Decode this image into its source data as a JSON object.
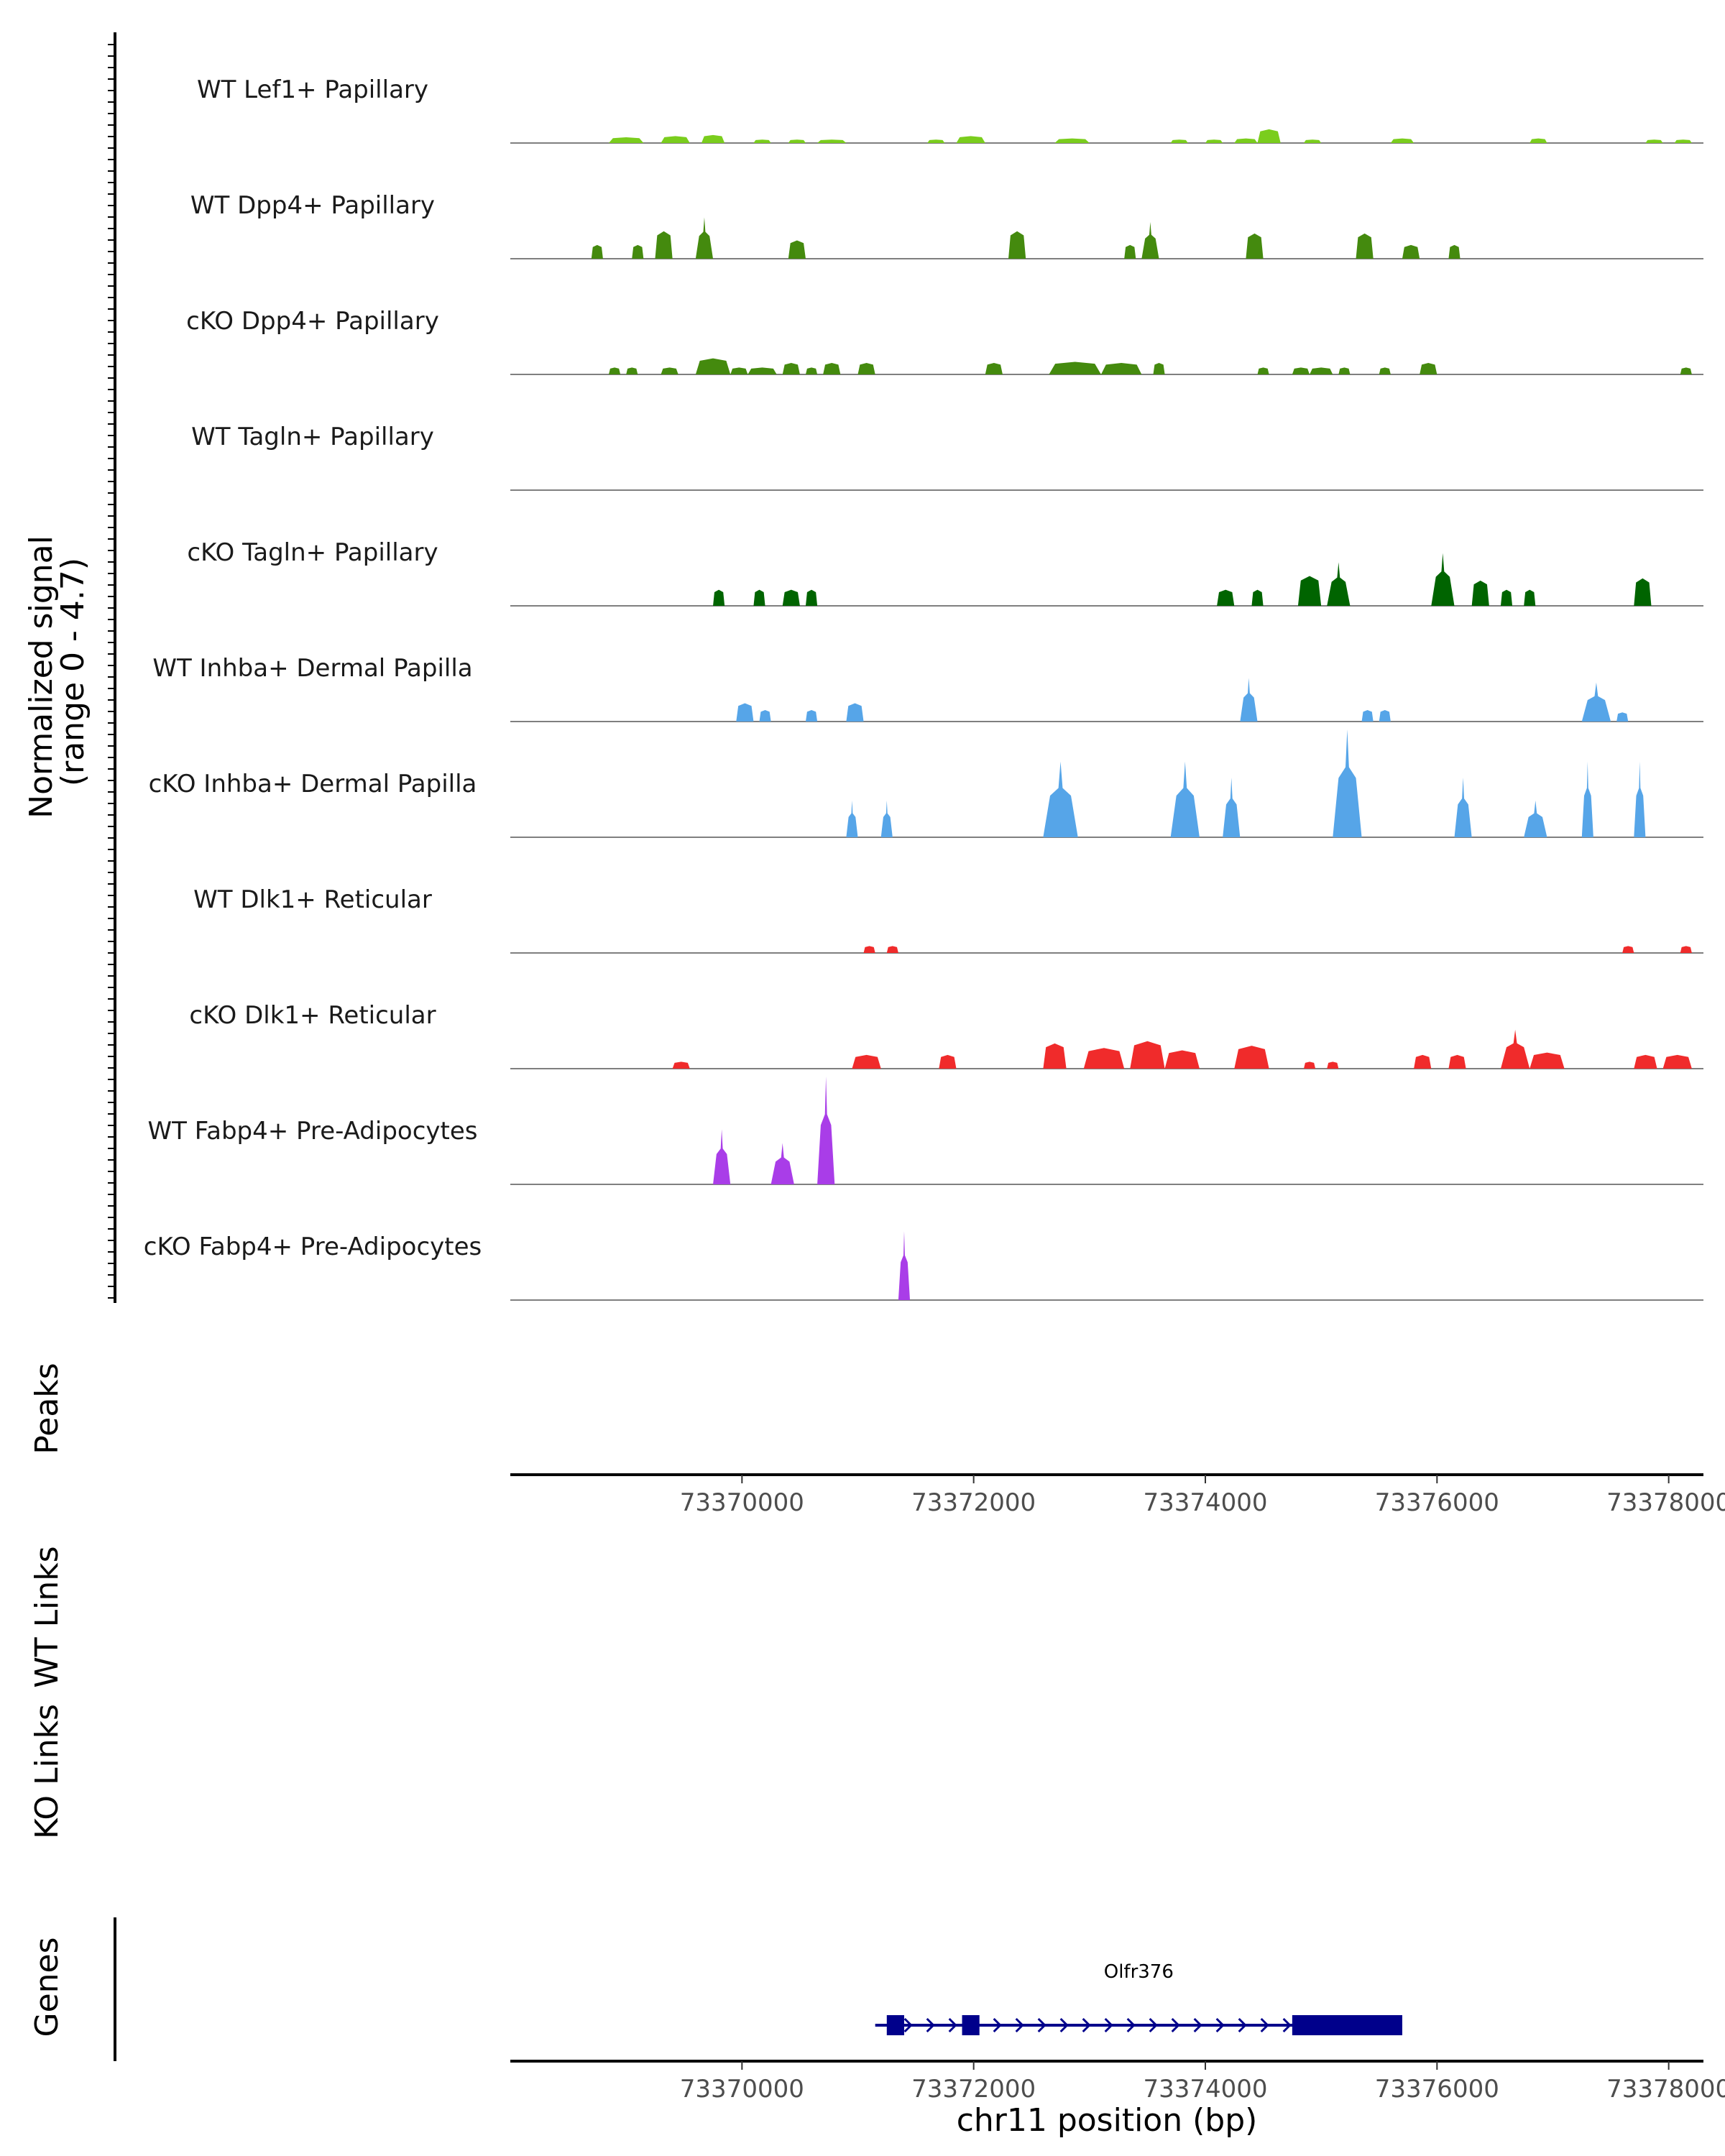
{
  "chart_data": {
    "type": "area",
    "title": "",
    "xlabel": "chr11 position (bp)",
    "ylabel": "Normalized signal\n(range 0 - 4.7)",
    "ylim": [
      0,
      4.7
    ],
    "x_range": [
      73368000,
      73378300
    ],
    "x_ticks": [
      73370000,
      73372000,
      73374000,
      73376000,
      73378000
    ],
    "x_tick_labels": [
      "73370000",
      "73372000",
      "73374000",
      "73376000",
      "73378000"
    ],
    "panel_labels": {
      "peaks": "Peaks",
      "wt_links": "WT Links",
      "ko_links": "KO Links",
      "genes": "Genes"
    },
    "series": [
      {
        "name": "WT Lef1+ Papillary",
        "color": "#7ACD1D",
        "peaks": [
          [
            73368850,
            73369150,
            0.25
          ],
          [
            73369300,
            73369550,
            0.3
          ],
          [
            73369650,
            73369850,
            0.35
          ],
          [
            73370100,
            73370250,
            0.15
          ],
          [
            73370400,
            73370550,
            0.15
          ],
          [
            73370650,
            73370900,
            0.15
          ],
          [
            73371600,
            73371750,
            0.15
          ],
          [
            73371850,
            73372100,
            0.3
          ],
          [
            73372700,
            73373000,
            0.2
          ],
          [
            73373700,
            73373850,
            0.15
          ],
          [
            73374000,
            73374150,
            0.15
          ],
          [
            73374250,
            73374450,
            0.2
          ],
          [
            73374450,
            73374650,
            0.6
          ],
          [
            73374850,
            73375000,
            0.15
          ],
          [
            73375600,
            73375800,
            0.2
          ],
          [
            73376800,
            73376950,
            0.2
          ],
          [
            73377800,
            73377950,
            0.15
          ],
          [
            73378050,
            73378200,
            0.15
          ]
        ]
      },
      {
        "name": "WT Dpp4+ Papillary",
        "color": "#448A0E",
        "peaks": [
          [
            73368700,
            73368800,
            0.6
          ],
          [
            73369050,
            73369150,
            0.6
          ],
          [
            73369250,
            73369400,
            1.2
          ],
          [
            73369600,
            73369750,
            1.8
          ],
          [
            73370400,
            73370550,
            0.8
          ],
          [
            73372300,
            73372450,
            1.2
          ],
          [
            73373300,
            73373400,
            0.6
          ],
          [
            73373450,
            73373600,
            1.6
          ],
          [
            73374350,
            73374500,
            1.1
          ],
          [
            73375300,
            73375450,
            1.1
          ],
          [
            73375700,
            73375850,
            0.6
          ],
          [
            73376100,
            73376200,
            0.6
          ]
        ]
      },
      {
        "name": "cKO Dpp4+ Papillary",
        "color": "#448A0E",
        "peaks": [
          [
            73368850,
            73368950,
            0.3
          ],
          [
            73369000,
            73369100,
            0.3
          ],
          [
            73369300,
            73369450,
            0.3
          ],
          [
            73369600,
            73369900,
            0.7
          ],
          [
            73369900,
            73370050,
            0.3
          ],
          [
            73370050,
            73370300,
            0.3
          ],
          [
            73370350,
            73370500,
            0.5
          ],
          [
            73370550,
            73370650,
            0.3
          ],
          [
            73370700,
            73370850,
            0.5
          ],
          [
            73371000,
            73371150,
            0.5
          ],
          [
            73372100,
            73372250,
            0.5
          ],
          [
            73372650,
            73373100,
            0.55
          ],
          [
            73373100,
            73373450,
            0.5
          ],
          [
            73373550,
            73373650,
            0.5
          ],
          [
            73374450,
            73374550,
            0.3
          ],
          [
            73374750,
            73374900,
            0.3
          ],
          [
            73374900,
            73375100,
            0.3
          ],
          [
            73375150,
            73375250,
            0.3
          ],
          [
            73375500,
            73375600,
            0.3
          ],
          [
            73375850,
            73376000,
            0.5
          ],
          [
            73378100,
            73378200,
            0.3
          ]
        ]
      },
      {
        "name": "WT Tagln+ Papillary",
        "color": "#006400",
        "peaks": []
      },
      {
        "name": "cKO Tagln+ Papillary",
        "color": "#006400",
        "peaks": [
          [
            73369750,
            73369850,
            0.7
          ],
          [
            73370100,
            73370200,
            0.7
          ],
          [
            73370350,
            73370500,
            0.7
          ],
          [
            73370550,
            73370650,
            0.7
          ],
          [
            73374100,
            73374250,
            0.7
          ],
          [
            73374400,
            73374500,
            0.7
          ],
          [
            73374800,
            73375000,
            1.3
          ],
          [
            73375050,
            73375250,
            1.9
          ],
          [
            73375950,
            73376150,
            2.3
          ],
          [
            73376300,
            73376450,
            1.1
          ],
          [
            73376550,
            73376650,
            0.7
          ],
          [
            73376750,
            73376850,
            0.7
          ],
          [
            73377700,
            73377850,
            1.2
          ]
        ]
      },
      {
        "name": "WT Inhba+ Dermal Papilla",
        "color": "#56A5E8",
        "peaks": [
          [
            73369950,
            73370100,
            0.8
          ],
          [
            73370150,
            73370250,
            0.5
          ],
          [
            73370550,
            73370650,
            0.5
          ],
          [
            73370900,
            73371050,
            0.8
          ],
          [
            73374300,
            73374450,
            1.9
          ],
          [
            73375350,
            73375450,
            0.5
          ],
          [
            73375500,
            73375600,
            0.5
          ],
          [
            73377250,
            73377500,
            1.7
          ],
          [
            73377550,
            73377650,
            0.4
          ]
        ]
      },
      {
        "name": "cKO Inhba+ Dermal Papilla",
        "color": "#56A5E8",
        "peaks": [
          [
            73370900,
            73371000,
            1.6
          ],
          [
            73371200,
            73371300,
            1.6
          ],
          [
            73372600,
            73372900,
            3.3
          ],
          [
            73373700,
            73373950,
            3.3
          ],
          [
            73374150,
            73374300,
            2.6
          ],
          [
            73375100,
            73375350,
            4.7
          ],
          [
            73376150,
            73376300,
            2.6
          ],
          [
            73376750,
            73376950,
            1.6
          ],
          [
            73377250,
            73377350,
            3.3
          ],
          [
            73377700,
            73377800,
            3.3
          ]
        ]
      },
      {
        "name": "WT Dlk1+ Reticular",
        "color": "#F02B2B",
        "peaks": [
          [
            73371050,
            73371150,
            0.3
          ],
          [
            73371250,
            73371350,
            0.3
          ],
          [
            73377600,
            73377700,
            0.3
          ],
          [
            73378100,
            73378200,
            0.3
          ]
        ]
      },
      {
        "name": "cKO Dlk1+ Reticular",
        "color": "#F02B2B",
        "peaks": [
          [
            73369400,
            73369550,
            0.3
          ],
          [
            73370950,
            73371200,
            0.6
          ],
          [
            73371700,
            73371850,
            0.6
          ],
          [
            73372600,
            73372800,
            1.1
          ],
          [
            73372950,
            73373300,
            0.9
          ],
          [
            73373350,
            73373650,
            1.2
          ],
          [
            73373650,
            73373950,
            0.8
          ],
          [
            73374250,
            73374550,
            1.0
          ],
          [
            73374850,
            73374950,
            0.3
          ],
          [
            73375050,
            73375150,
            0.3
          ],
          [
            73375800,
            73375950,
            0.6
          ],
          [
            73376100,
            73376250,
            0.6
          ],
          [
            73376550,
            73376800,
            1.7
          ],
          [
            73376800,
            73377100,
            0.7
          ],
          [
            73377700,
            73377900,
            0.6
          ],
          [
            73377950,
            73378200,
            0.6
          ]
        ]
      },
      {
        "name": "WT Fabp4+ Pre-Adipocytes",
        "color": "#A93DE8",
        "peaks": [
          [
            73369750,
            73369900,
            2.4
          ],
          [
            73370250,
            73370450,
            1.8
          ],
          [
            73370650,
            73370800,
            4.7
          ]
        ]
      },
      {
        "name": "cKO Fabp4+ Pre-Adipocytes",
        "color": "#A93DE8",
        "peaks": [
          [
            73371350,
            73371450,
            3.0
          ]
        ]
      }
    ],
    "genes": [
      {
        "name": "Olfr376",
        "color": "#00008B",
        "start": 73371150,
        "end": 73375700,
        "strand": "+",
        "exons": [
          [
            73371250,
            73371400
          ],
          [
            73371900,
            73372050
          ],
          [
            73374750,
            73375700
          ]
        ]
      }
    ]
  }
}
